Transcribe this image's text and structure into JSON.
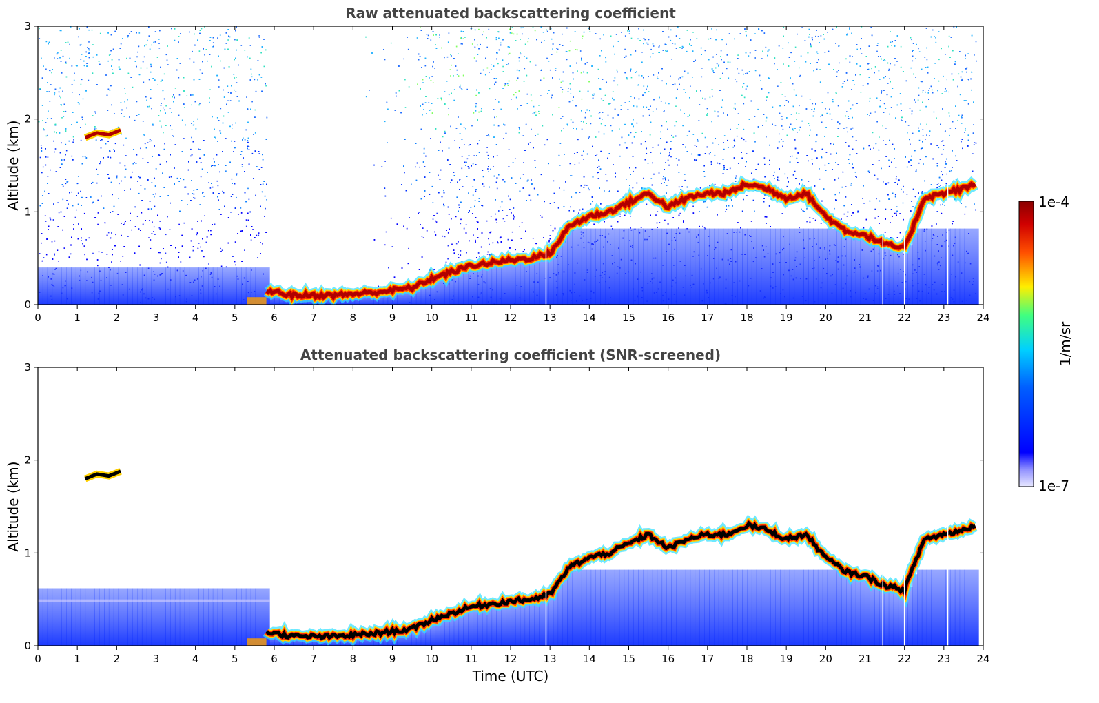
{
  "chart_data": [
    {
      "type": "heatmap",
      "title": "Raw attenuated backscattering coefficient",
      "xlabel": "",
      "ylabel": "Altitude (km)",
      "xlim": [
        0,
        24
      ],
      "ylim": [
        0,
        3
      ],
      "xticks": [
        "0",
        "1",
        "2",
        "3",
        "4",
        "5",
        "6",
        "7",
        "8",
        "9",
        "10",
        "11",
        "12",
        "13",
        "14",
        "15",
        "16",
        "17",
        "18",
        "19",
        "20",
        "21",
        "22",
        "23",
        "24"
      ],
      "yticks": [
        "0",
        "1",
        "2",
        "3"
      ],
      "layer_top_km": {
        "x": [
          1.2,
          1.5,
          1.8,
          2.1,
          5.8,
          6.5,
          7.5,
          8.5,
          9.5,
          10.0,
          10.5,
          11.0,
          11.5,
          12.0,
          12.5,
          13.0,
          13.5,
          14.0,
          14.5,
          15.0,
          15.5,
          16.0,
          16.5,
          17.0,
          17.5,
          18.0,
          18.5,
          19.0,
          19.5,
          20.0,
          20.5,
          21.0,
          21.5,
          22.0,
          22.5,
          23.0,
          23.5,
          23.8
        ],
        "y": [
          1.8,
          1.85,
          1.83,
          1.88,
          0.15,
          0.1,
          0.1,
          0.13,
          0.18,
          0.28,
          0.35,
          0.42,
          0.45,
          0.48,
          0.5,
          0.55,
          0.85,
          0.95,
          1.0,
          1.1,
          1.2,
          1.05,
          1.15,
          1.2,
          1.2,
          1.3,
          1.25,
          1.15,
          1.2,
          0.95,
          0.8,
          0.75,
          0.65,
          0.6,
          1.15,
          1.2,
          1.25,
          1.3
        ]
      },
      "screened_gaps_utc": [
        [
          5.8,
          9.8
        ]
      ],
      "vertical_gaps_utc": [
        12.9,
        21.45,
        22.0,
        23.1
      ]
    },
    {
      "type": "heatmap",
      "title": "Attenuated backscattering coefficient (SNR-screened)",
      "xlabel": "Time (UTC)",
      "ylabel": "Altitude (km)",
      "xlim": [
        0,
        24
      ],
      "ylim": [
        0,
        3
      ],
      "xticks": [
        "0",
        "1",
        "2",
        "3",
        "4",
        "5",
        "6",
        "7",
        "8",
        "9",
        "10",
        "11",
        "12",
        "13",
        "14",
        "15",
        "16",
        "17",
        "18",
        "19",
        "20",
        "21",
        "22",
        "23",
        "24"
      ],
      "yticks": [
        "0",
        "1",
        "2",
        "3"
      ]
    }
  ],
  "colorbar": {
    "label": "1/m/sr",
    "max_label": "1e-4",
    "min_label": "1e-7",
    "colors": [
      "#e8e8ff",
      "#0000ff",
      "#00d0ff",
      "#40ff80",
      "#ffee00",
      "#ff5000",
      "#8b0000"
    ]
  }
}
